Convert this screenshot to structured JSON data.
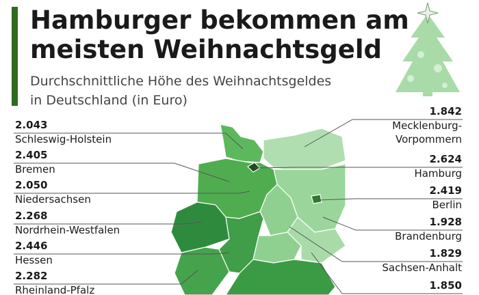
{
  "header": {
    "title_lines": [
      "Hamburger bekommen am",
      "meisten Weihnachtsgeld"
    ],
    "subtitle_lines": [
      "Durchschnittliche Höhe des Weihnachtsgeldes",
      "in Deutschland (in Euro)"
    ]
  },
  "regions_left": [
    {
      "value": "2.043",
      "name": [
        "Schleswig-Holstein"
      ]
    },
    {
      "value": "2.405",
      "name": [
        "Bremen"
      ]
    },
    {
      "value": "2.050",
      "name": [
        "Niedersachsen"
      ]
    },
    {
      "value": "2.268",
      "name": [
        "Nordrhein-Westfalen"
      ]
    },
    {
      "value": "2.446",
      "name": [
        "Hessen"
      ]
    },
    {
      "value": "2.282",
      "name": [
        "Rheinland-Pfalz"
      ]
    }
  ],
  "regions_right": [
    {
      "value": "1.842",
      "name": [
        "Mecklenburg-",
        "Vorpommern"
      ]
    },
    {
      "value": "2.624",
      "name": [
        "Hamburg"
      ]
    },
    {
      "value": "2.419",
      "name": [
        "Berlin"
      ]
    },
    {
      "value": "1.928",
      "name": [
        "Brandenburg"
      ]
    },
    {
      "value": "1.829",
      "name": [
        "Sachsen-Anhalt"
      ]
    },
    {
      "value": "1.850",
      "name": []
    }
  ]
}
